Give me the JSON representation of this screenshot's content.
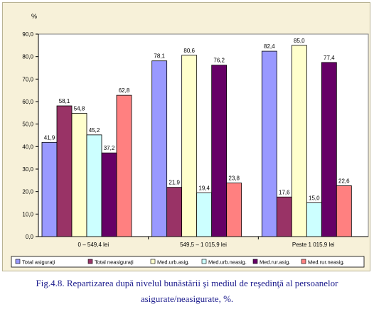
{
  "caption": {
    "line1": "Fig.4.8. Repartizarea după nivelul bunăstării şi mediul de reşedinţă al persoanelor",
    "line2": "asigurate/neasigurate, %."
  },
  "chart_data": {
    "type": "bar",
    "title": "",
    "xlabel": "",
    "ylabel": "%",
    "ylim": [
      0,
      90
    ],
    "yticks": [
      "0,0",
      "10,0",
      "20,0",
      "30,0",
      "40,0",
      "50,0",
      "60,0",
      "70,0",
      "80,0",
      "90,0"
    ],
    "grid": false,
    "legend_position": "bottom",
    "categories": [
      "0 – 549,4 lei",
      "549,5 – 1 015,9 lei",
      "Peste 1 015,9 lei"
    ],
    "series": [
      {
        "name": "Total asiguraţi",
        "color": "#9999ff",
        "values": [
          41.9,
          78.1,
          82.4
        ],
        "labels": [
          "41,9",
          "78,1",
          "82,4"
        ]
      },
      {
        "name": "Total neasiguraţi",
        "color": "#993366",
        "values": [
          58.1,
          21.9,
          17.6
        ],
        "labels": [
          "58,1",
          "21,9",
          "17,6"
        ]
      },
      {
        "name": "Med.urb.asig.",
        "color": "#ffffcc",
        "values": [
          54.8,
          80.6,
          85.0
        ],
        "labels": [
          "54,8",
          "80,6",
          "85,0"
        ]
      },
      {
        "name": "Med.urb.neasig.",
        "color": "#ccffff",
        "values": [
          45.2,
          19.4,
          15.0
        ],
        "labels": [
          "45,2",
          "19,4",
          "15,0"
        ]
      },
      {
        "name": "Med.rur.asig.",
        "color": "#660066",
        "values": [
          37.2,
          76.2,
          77.4
        ],
        "labels": [
          "37,2",
          "76,2",
          "77,4"
        ]
      },
      {
        "name": "Med.rur.neasig.",
        "color": "#ff8080",
        "values": [
          62.8,
          23.8,
          22.6
        ],
        "labels": [
          "62,8",
          "23,8",
          "22,6"
        ]
      }
    ]
  }
}
